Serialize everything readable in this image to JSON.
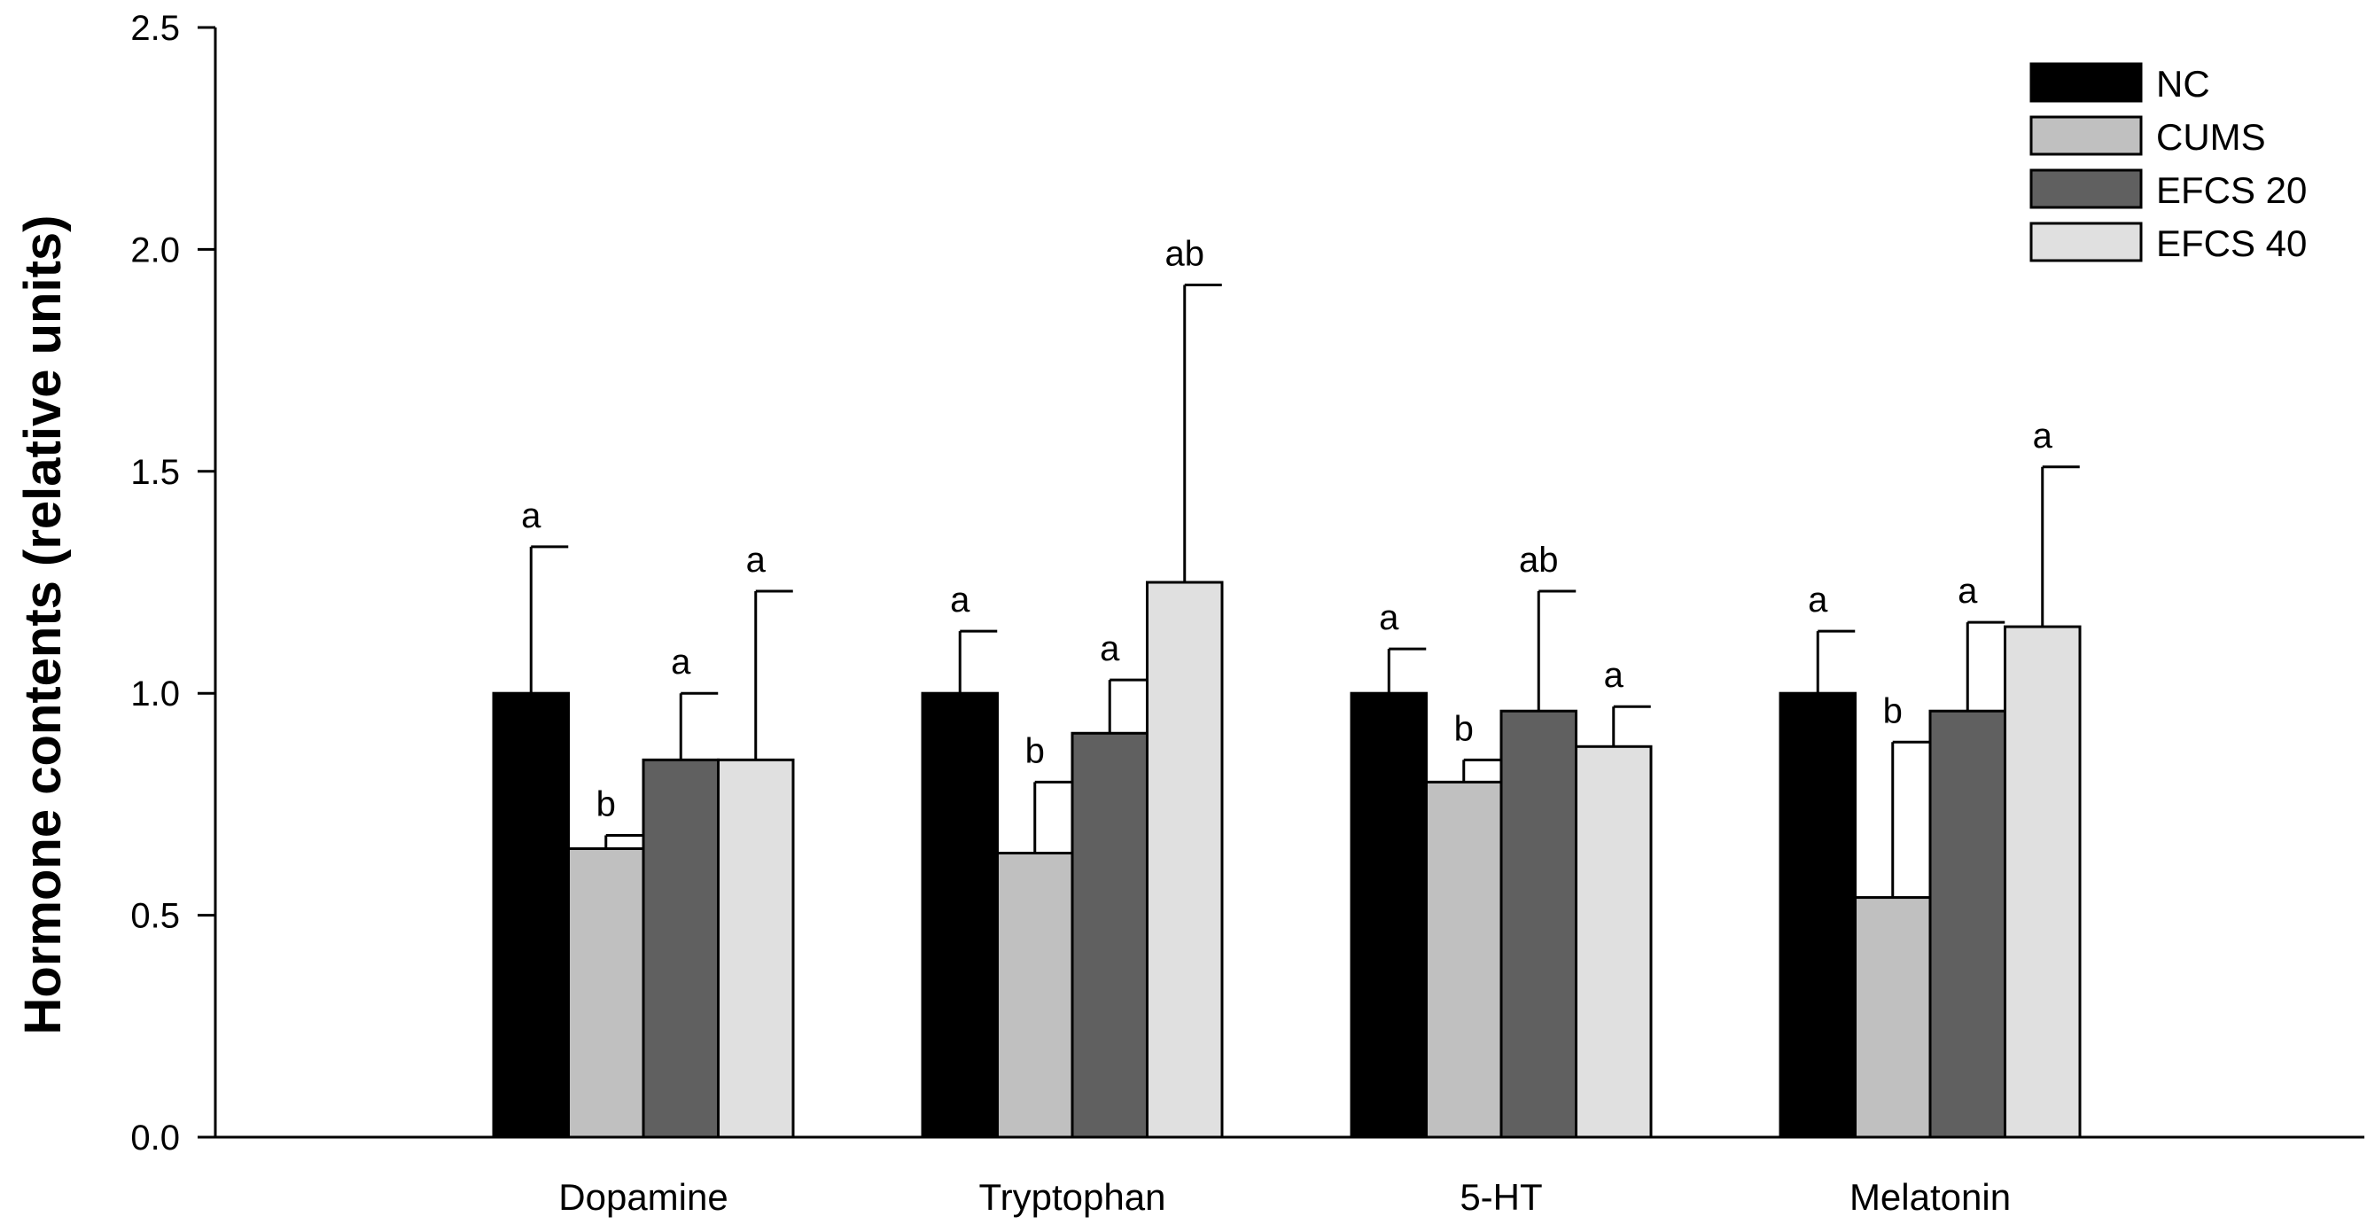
{
  "chart_data": {
    "type": "bar",
    "title": "",
    "xlabel": "",
    "ylabel": "Hormone contents (relative units)",
    "ylim": [
      0,
      2.5
    ],
    "yticks": [
      "0.0",
      "0.5",
      "1.0",
      "1.5",
      "2.0",
      "2.5"
    ],
    "ytick_values": [
      0,
      0.5,
      1.0,
      1.5,
      2.0,
      2.5
    ],
    "grid": false,
    "legend_position": "top-right",
    "categories": [
      "Dopamine",
      "Tryptophan",
      "5-HT",
      "Melatonin"
    ],
    "series": [
      {
        "name": "NC",
        "color": "#000000",
        "values": [
          1.0,
          1.0,
          1.0,
          1.0
        ],
        "errors": [
          0.33,
          0.14,
          0.1,
          0.14
        ],
        "letters": [
          "a",
          "a",
          "a",
          "a"
        ]
      },
      {
        "name": "CUMS",
        "color": "#c0c0c0",
        "values": [
          0.65,
          0.64,
          0.8,
          0.54
        ],
        "errors": [
          0.03,
          0.16,
          0.05,
          0.35
        ],
        "letters": [
          "b",
          "b",
          "b",
          "b"
        ]
      },
      {
        "name": "EFCS 20",
        "color": "#606060",
        "values": [
          0.85,
          0.91,
          0.96,
          0.96
        ],
        "errors": [
          0.15,
          0.12,
          0.27,
          0.2
        ],
        "letters": [
          "a",
          "a",
          "ab",
          "a"
        ]
      },
      {
        "name": "EFCS 40",
        "color": "#e0e0e0",
        "values": [
          0.85,
          1.25,
          0.88,
          1.15
        ],
        "errors": [
          0.38,
          0.67,
          0.09,
          0.36
        ],
        "letters": [
          "a",
          "ab",
          "a",
          "a"
        ]
      }
    ]
  }
}
